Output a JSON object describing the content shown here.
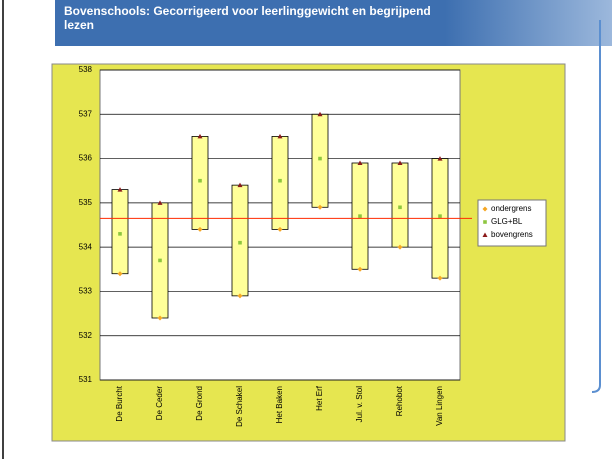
{
  "chart_data": {
    "type": "range",
    "title": "Bovenschools: Gecorrigeerd voor leerlinggewicht en begrijpend lezen",
    "categories": [
      "De Burcht",
      "De Ceder",
      "De Grond",
      "De Schakel",
      "Het Baken",
      "Het Erf",
      "Jul. v. Stol",
      "Rehobot",
      "Van Lingen"
    ],
    "series": [
      {
        "name": "ondergrens",
        "color": "#f5a623",
        "values": [
          533.4,
          532.4,
          534.4,
          532.9,
          534.4,
          534.9,
          533.5,
          534.0,
          533.3
        ]
      },
      {
        "name": "GLG+BL",
        "color": "#8dc63f",
        "values": [
          534.3,
          533.7,
          535.5,
          534.1,
          535.5,
          536.0,
          534.7,
          534.9,
          534.7
        ]
      },
      {
        "name": "bovengrens",
        "color": "#8b1a1a",
        "values": [
          535.3,
          535.0,
          536.5,
          535.4,
          536.5,
          537.0,
          535.9,
          535.9,
          536.0
        ]
      }
    ],
    "bar_color": "#ffff99",
    "reference_value": 534.65,
    "reference_color": "#ff2a00",
    "ylim": [
      531,
      538
    ],
    "yticks": [
      531,
      532,
      533,
      534,
      535,
      536,
      537,
      538
    ],
    "grid": true,
    "legend": "right"
  }
}
